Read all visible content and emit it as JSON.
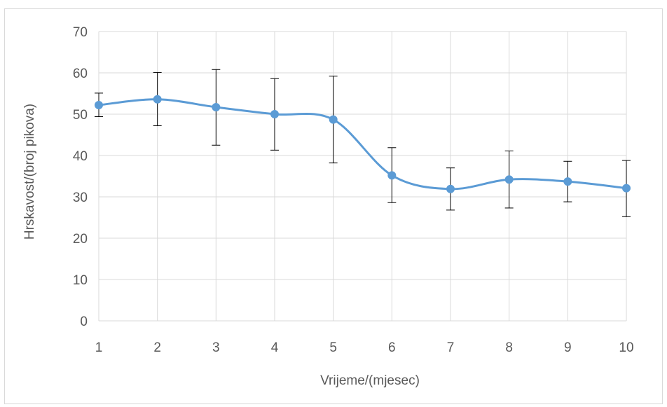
{
  "chart_data": {
    "type": "line",
    "title": "",
    "xlabel": "Vrijeme/(mjesec)",
    "ylabel": "Hrskavost/(broj pikova)",
    "x": [
      1,
      2,
      3,
      4,
      5,
      6,
      7,
      8,
      9,
      10
    ],
    "x_tick_labels": [
      "1",
      "2",
      "3",
      "4",
      "5",
      "6",
      "7",
      "8",
      "9",
      "10"
    ],
    "y_ticks": [
      0,
      10,
      20,
      30,
      40,
      50,
      60,
      70
    ],
    "ylim": [
      0,
      70
    ],
    "grid": true,
    "smooth": true,
    "series": [
      {
        "values": [
          52.2,
          53.6,
          51.7,
          50.0,
          48.7,
          35.2,
          31.9,
          34.2,
          33.7,
          32.1
        ],
        "error_upper": [
          55.1,
          60.1,
          60.8,
          58.6,
          59.2,
          41.9,
          37.0,
          41.1,
          38.6,
          38.8
        ],
        "error_lower": [
          49.4,
          47.2,
          42.5,
          41.3,
          38.2,
          28.6,
          26.8,
          27.3,
          28.8,
          25.2
        ],
        "color": "#5b9bd5"
      }
    ],
    "colors": {
      "grid": "#d9d9d9",
      "error_bar": "#000000",
      "text": "#595959"
    }
  }
}
